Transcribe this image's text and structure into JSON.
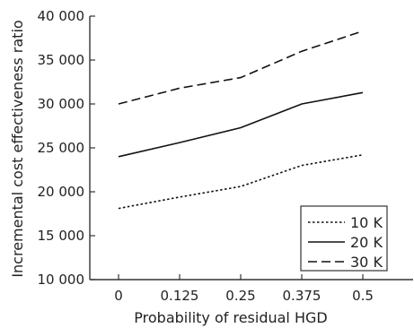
{
  "chart_data": {
    "type": "line",
    "title": "",
    "xlabel": "Probability of residual HGD",
    "ylabel": "Incremental cost effectiveness ratio",
    "x": [
      0,
      0.125,
      0.25,
      0.375,
      0.5
    ],
    "x_tick_labels": [
      "0",
      "0.125",
      "0.25",
      "0.375",
      "0.5"
    ],
    "xlim": [
      0,
      0.5
    ],
    "ylim": [
      10000,
      40000
    ],
    "y_ticks": [
      10000,
      15000,
      20000,
      25000,
      30000,
      35000,
      40000
    ],
    "y_tick_labels": [
      "10 000",
      "15 000",
      "20 000",
      "25 000",
      "30 000",
      "35 000",
      "40 000"
    ],
    "grid": false,
    "legend_position": "lower-right",
    "series": [
      {
        "name": "10 K",
        "dash": "dotted",
        "values": [
          18100,
          19400,
          20600,
          23000,
          24200
        ]
      },
      {
        "name": "20 K",
        "dash": "solid",
        "values": [
          24000,
          25600,
          27300,
          30000,
          31300
        ]
      },
      {
        "name": "30 K",
        "dash": "dashed",
        "values": [
          30000,
          31800,
          33000,
          36000,
          38300
        ]
      }
    ],
    "line_color": "#111111"
  }
}
